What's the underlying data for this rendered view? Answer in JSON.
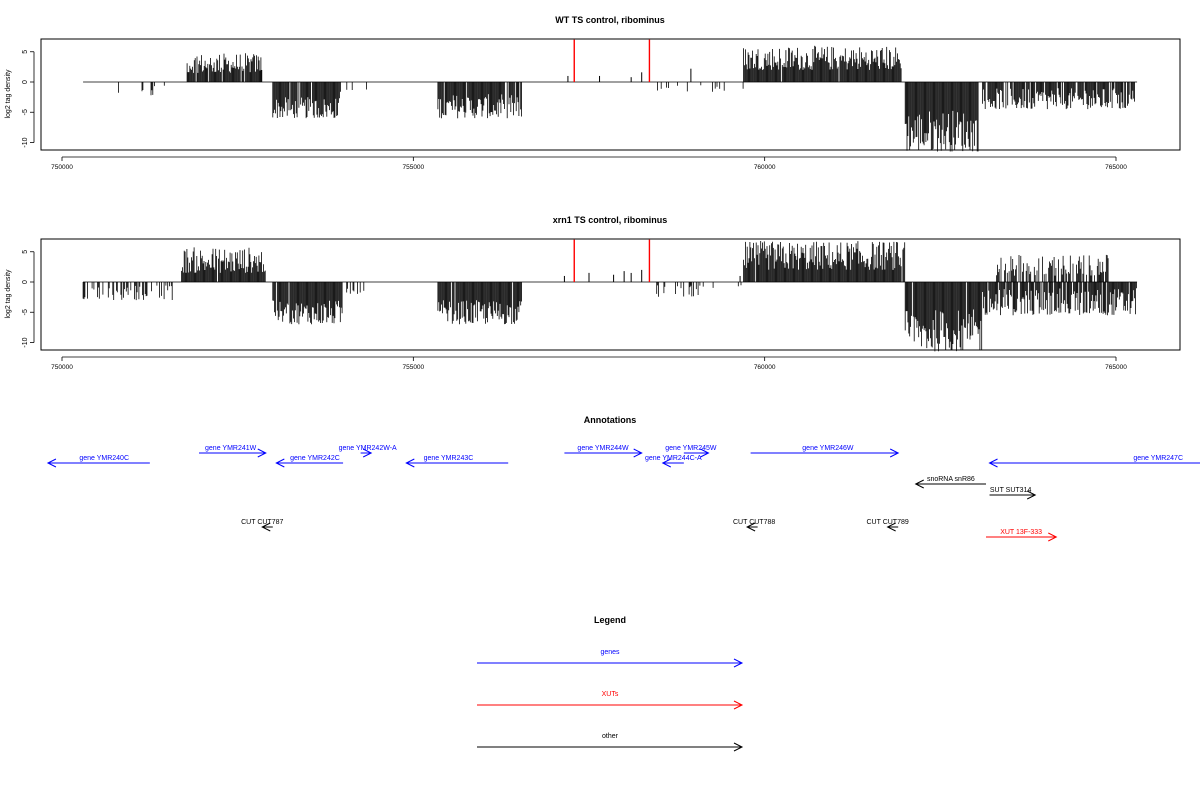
{
  "chart_data": [
    {
      "type": "bar",
      "title": "WT TS control, ribominus",
      "ylabel": "log2 tag density",
      "xlim": [
        749600,
        765900
      ],
      "ylim": [
        -12,
        7
      ],
      "yticks": [
        -10,
        -5,
        0,
        5
      ],
      "xticks": [
        750000,
        755000,
        760000,
        765000
      ],
      "baseline": [
        750300,
        765300
      ],
      "highlight_color": "#ff0000",
      "highlights": [
        {
          "x": 757290,
          "y": 7
        },
        {
          "x": 758360,
          "y": 7
        }
      ],
      "regions": [
        {
          "from": 750550,
          "to": 751300,
          "min": -2.5,
          "max": -0.6,
          "density": 0.15
        },
        {
          "from": 751200,
          "to": 751600,
          "min": -1.0,
          "max": -0.3,
          "density": 0.08
        },
        {
          "from": 751780,
          "to": 752850,
          "min": 1.5,
          "max": 4.8,
          "density": 0.95
        },
        {
          "from": 753000,
          "to": 753950,
          "min": -6.0,
          "max": -2.5,
          "density": 0.97
        },
        {
          "from": 753950,
          "to": 754350,
          "min": -2.0,
          "max": -0.5,
          "density": 0.3
        },
        {
          "from": 755350,
          "to": 756550,
          "min": -6.0,
          "max": -2.0,
          "density": 0.95
        },
        {
          "from": 758400,
          "to": 759700,
          "min": -1.6,
          "max": -0.5,
          "density": 0.12
        },
        {
          "from": 759700,
          "to": 761950,
          "min": 2.0,
          "max": 6.0,
          "density": 0.97
        },
        {
          "from": 762000,
          "to": 763050,
          "min": -11.5,
          "max": -4.5,
          "density": 0.99
        },
        {
          "from": 763100,
          "to": 765300,
          "min": -4.5,
          "max": -1.0,
          "density": 0.85
        }
      ],
      "spikes": [
        {
          "x": 757200,
          "y": 1.0
        },
        {
          "x": 757650,
          "y": 1.0
        },
        {
          "x": 758100,
          "y": 0.8
        },
        {
          "x": 758250,
          "y": 1.6
        },
        {
          "x": 758950,
          "y": 2.2
        },
        {
          "x": 752830,
          "y": 2.0
        }
      ]
    },
    {
      "type": "bar",
      "title": "xrn1 TS control, ribominus",
      "ylabel": "log2 tag density",
      "xlim": [
        749600,
        765900
      ],
      "ylim": [
        -12,
        7
      ],
      "yticks": [
        -10,
        -5,
        0,
        5
      ],
      "xticks": [
        750000,
        755000,
        760000,
        765000
      ],
      "baseline": [
        750300,
        765300
      ],
      "highlight_color": "#ff0000",
      "highlights": [
        {
          "x": 757290,
          "y": 7
        },
        {
          "x": 758360,
          "y": 7
        }
      ],
      "regions": [
        {
          "from": 750300,
          "to": 751600,
          "min": -3.0,
          "max": -0.5,
          "density": 0.45
        },
        {
          "from": 751700,
          "to": 752900,
          "min": 1.5,
          "max": 5.8,
          "density": 0.95
        },
        {
          "from": 753000,
          "to": 754000,
          "min": -7.0,
          "max": -3.0,
          "density": 0.97
        },
        {
          "from": 754000,
          "to": 754300,
          "min": -2.0,
          "max": -0.5,
          "density": 0.3
        },
        {
          "from": 755350,
          "to": 756550,
          "min": -7.0,
          "max": -3.0,
          "density": 0.97
        },
        {
          "from": 758400,
          "to": 759100,
          "min": -2.5,
          "max": -0.5,
          "density": 0.35
        },
        {
          "from": 759100,
          "to": 759700,
          "min": -1.0,
          "max": -0.3,
          "density": 0.12
        },
        {
          "from": 759700,
          "to": 762000,
          "min": 2.0,
          "max": 6.8,
          "density": 0.98
        },
        {
          "from": 762000,
          "to": 763100,
          "min": -11.5,
          "max": -4.5,
          "density": 0.99
        },
        {
          "from": 763100,
          "to": 765300,
          "min": -5.5,
          "max": -1.0,
          "density": 0.9
        },
        {
          "from": 763300,
          "to": 764900,
          "min": 1.0,
          "max": 4.5,
          "density": 0.6
        }
      ],
      "spikes": [
        {
          "x": 757150,
          "y": 1.0
        },
        {
          "x": 757500,
          "y": 1.5
        },
        {
          "x": 757850,
          "y": 1.2
        },
        {
          "x": 758000,
          "y": 1.8
        },
        {
          "x": 758100,
          "y": 1.5
        },
        {
          "x": 758250,
          "y": 2.0
        },
        {
          "x": 759650,
          "y": 1.0
        }
      ]
    }
  ],
  "annotations": {
    "title": "Annotations",
    "features": [
      {
        "label": "gene YMR240C",
        "start": 751250,
        "end": 749800,
        "row": 2,
        "color": "#0000ff",
        "label_x": 750600
      },
      {
        "label": "gene YMR241W",
        "start": 751950,
        "end": 752900,
        "row": 1,
        "color": "#0000ff",
        "label_x": 752400
      },
      {
        "label": "gene YMR242C",
        "start": 754000,
        "end": 753050,
        "row": 2,
        "color": "#0000ff",
        "label_x": 753600
      },
      {
        "label": "gene YMR242W-A",
        "start": 754250,
        "end": 754400,
        "row": 1,
        "color": "#0000ff",
        "label_x": 754350
      },
      {
        "label": "gene YMR243C",
        "start": 756350,
        "end": 754900,
        "row": 2,
        "color": "#0000ff",
        "label_x": 755500
      },
      {
        "label": "gene YMR244W",
        "start": 757150,
        "end": 758250,
        "row": 1,
        "color": "#0000ff",
        "label_x": 757700
      },
      {
        "label": "gene YMR244C-A",
        "start": 758850,
        "end": 758550,
        "row": 2,
        "color": "#0000ff",
        "label_x": 758700
      },
      {
        "label": "gene YMR245W",
        "start": 758850,
        "end": 759200,
        "row": 1,
        "color": "#0000ff",
        "label_x": 758950
      },
      {
        "label": "gene YMR246W",
        "start": 759800,
        "end": 761900,
        "row": 1,
        "color": "#0000ff",
        "label_x": 760900
      },
      {
        "label": "gene YMR247C",
        "start": 766200,
        "end": 763200,
        "row": 2,
        "color": "#0000ff",
        "label_x": 765600
      },
      {
        "label": "snoRNA snR86",
        "start": 763150,
        "end": 762150,
        "row": 3,
        "color": "#000000",
        "label_x": 762650
      },
      {
        "label": "SUT SUT314",
        "start": 763200,
        "end": 763850,
        "row": 4,
        "color": "#000000",
        "label_x": 763500
      },
      {
        "label": "CUT CUT787",
        "start": 753000,
        "end": 752850,
        "row": 5,
        "color": "#000000",
        "label_x": 752850
      },
      {
        "label": "CUT CUT788",
        "start": 759900,
        "end": 759750,
        "row": 5,
        "color": "#000000",
        "label_x": 759850
      },
      {
        "label": "CUT CUT789",
        "start": 761900,
        "end": 761750,
        "row": 5,
        "color": "#000000",
        "label_x": 761750
      },
      {
        "label": "XUT 13F-333",
        "start": 763150,
        "end": 764150,
        "row": 6,
        "color": "#ff0000",
        "label_x": 763650
      }
    ]
  },
  "legend": {
    "title": "Legend",
    "items": [
      {
        "label": "genes",
        "color": "#0000ff"
      },
      {
        "label": "XUTs",
        "color": "#ff0000"
      },
      {
        "label": "other",
        "color": "#000000"
      }
    ]
  }
}
